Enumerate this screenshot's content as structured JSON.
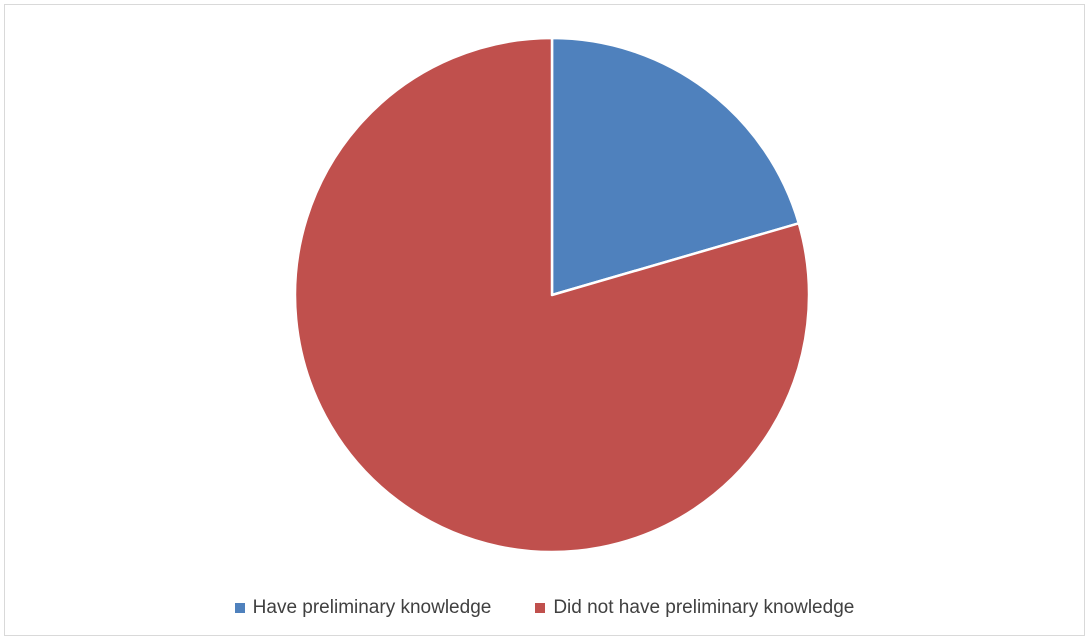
{
  "chart_data": {
    "type": "pie",
    "title": "",
    "start_angle_deg": 0,
    "direction": "clockwise",
    "legend_position": "bottom",
    "slices": [
      {
        "label": "Have preliminary knowledge",
        "value": 20.5,
        "color": "#4f81bd"
      },
      {
        "label": "Did not have preliminary knowledge",
        "value": 79.5,
        "color": "#c0504d"
      }
    ]
  }
}
